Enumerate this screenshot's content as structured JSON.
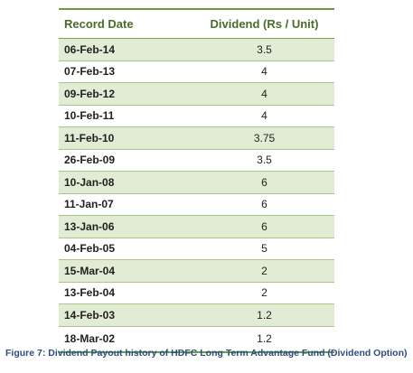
{
  "table": {
    "headers": {
      "date": "Record Date",
      "dividend": "Dividend (Rs / Unit)"
    },
    "rows": [
      {
        "date": "06-Feb-14",
        "dividend": "3.5"
      },
      {
        "date": "07-Feb-13",
        "dividend": "4"
      },
      {
        "date": "09-Feb-12",
        "dividend": "4"
      },
      {
        "date": "10-Feb-11",
        "dividend": "4"
      },
      {
        "date": "11-Feb-10",
        "dividend": "3.75"
      },
      {
        "date": "26-Feb-09",
        "dividend": "3.5"
      },
      {
        "date": "10-Jan-08",
        "dividend": "6"
      },
      {
        "date": "11-Jan-07",
        "dividend": "6"
      },
      {
        "date": "13-Jan-06",
        "dividend": "6"
      },
      {
        "date": "04-Feb-05",
        "dividend": "5"
      },
      {
        "date": "15-Mar-04",
        "dividend": "2"
      },
      {
        "date": "13-Feb-04",
        "dividend": "2"
      },
      {
        "date": "14-Feb-03",
        "dividend": "1.2"
      },
      {
        "date": "18-Mar-02",
        "dividend": "1.2"
      }
    ],
    "colors": {
      "rule": "#6f9b41",
      "header_text": "#4a6b2a",
      "shaded_row": "#e2ecd4"
    }
  },
  "caption": "Figure 7: Dividend Payout history of HDFC Long Term Advantage Fund (Dividend Option)"
}
